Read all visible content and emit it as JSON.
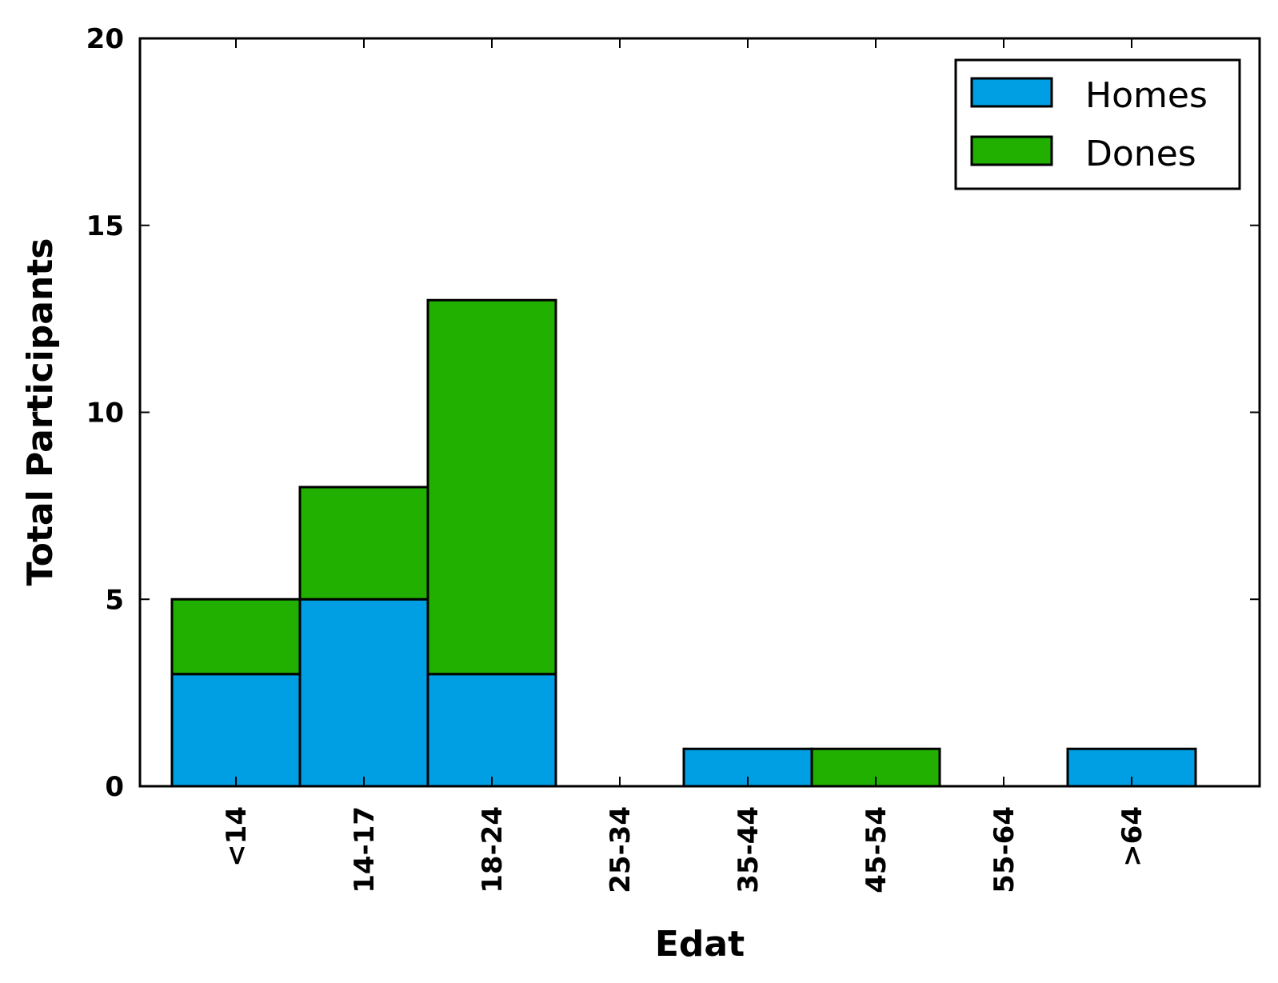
{
  "chart_data": {
    "type": "bar",
    "stacked": true,
    "categories": [
      "<14",
      "14-17",
      "18-24",
      "25-34",
      "35-44",
      "45-54",
      "55-64",
      ">64"
    ],
    "series": [
      {
        "name": "Homes",
        "color": "#009fe3",
        "values": [
          3,
          5,
          3,
          0,
          1,
          0,
          0,
          1
        ]
      },
      {
        "name": "Dones",
        "color": "#21b000",
        "values": [
          2,
          3,
          10,
          0,
          0,
          1,
          0,
          0
        ]
      }
    ],
    "title": "",
    "xlabel": "Edat",
    "ylabel": "Total Participants",
    "ylim": [
      0,
      20
    ],
    "yticks": [
      0,
      5,
      10,
      15,
      20
    ],
    "grid": false,
    "legend_position": "top-right"
  }
}
